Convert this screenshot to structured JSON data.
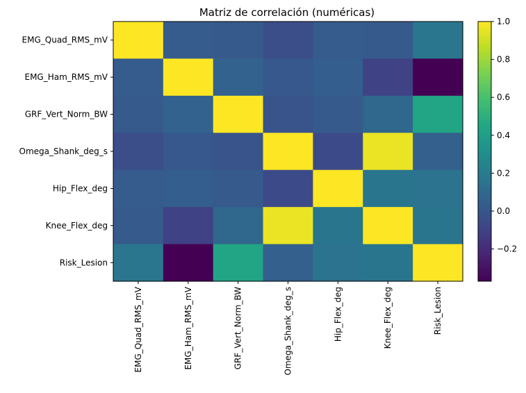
{
  "chart_data": {
    "type": "heatmap",
    "title": "Matriz de correlación (numéricas)",
    "xlabel": "",
    "ylabel": "",
    "categories": [
      "EMG_Quad_RMS_mV",
      "EMG_Ham_RMS_mV",
      "GRF_Vert_Norm_BW",
      "Omega_Shank_deg_s",
      "Hip_Flex_deg",
      "Knee_Flex_deg",
      "Risk_Lesion"
    ],
    "matrix": [
      [
        1.0,
        0.03,
        0.02,
        -0.04,
        0.03,
        0.02,
        0.17
      ],
      [
        0.03,
        1.0,
        0.06,
        0.01,
        0.04,
        -0.1,
        -0.37
      ],
      [
        0.02,
        0.06,
        1.0,
        -0.01,
        0.02,
        0.09,
        0.44
      ],
      [
        -0.04,
        0.01,
        -0.01,
        1.0,
        -0.06,
        0.96,
        0.05
      ],
      [
        0.03,
        0.04,
        0.02,
        -0.06,
        1.0,
        0.16,
        0.15
      ],
      [
        0.02,
        -0.1,
        0.09,
        0.96,
        0.16,
        1.0,
        0.16
      ],
      [
        0.17,
        -0.37,
        0.44,
        0.05,
        0.15,
        0.16,
        1.0
      ]
    ],
    "colormap": "viridis",
    "vmin": -0.37,
    "vmax": 1.0,
    "colorbar_ticks": [
      "1.0",
      "0.8",
      "0.6",
      "0.4",
      "0.2",
      "0.0",
      "−0.2"
    ],
    "colorbar_tick_values": [
      1.0,
      0.8,
      0.6,
      0.4,
      0.2,
      0.0,
      -0.2
    ],
    "grid": false,
    "legend": "colorbar-right"
  }
}
